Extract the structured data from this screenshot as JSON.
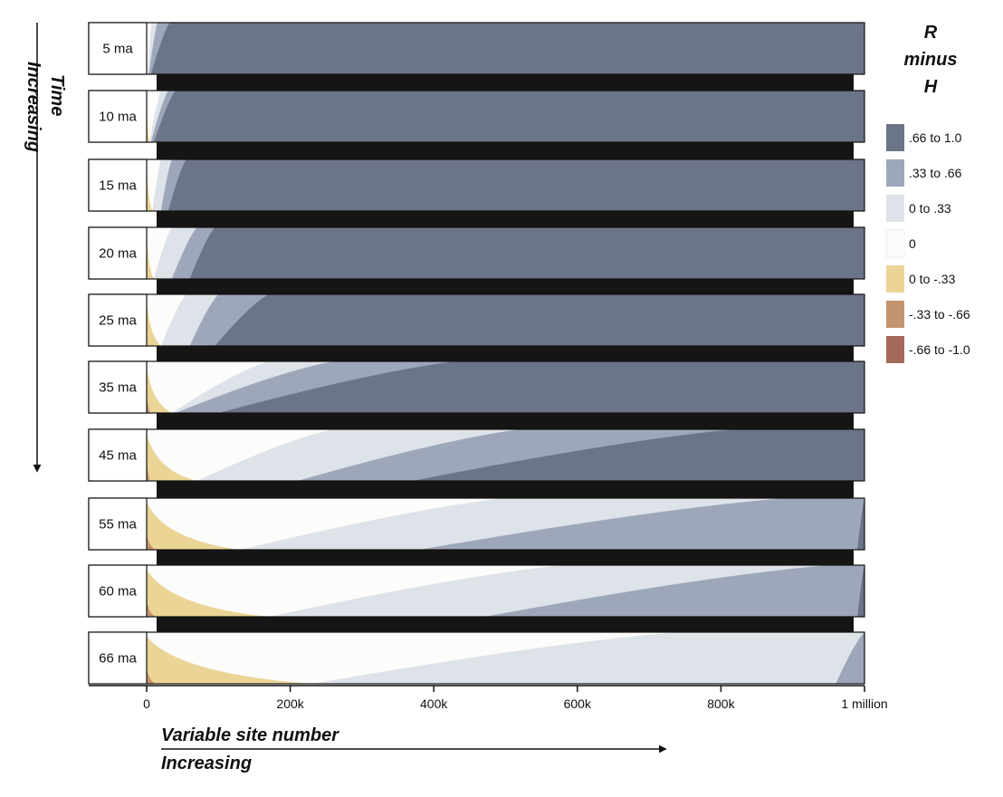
{
  "chart_data": {
    "type": "area",
    "x": {
      "range": [
        0,
        1000000
      ],
      "ticks": [
        0,
        200000,
        400000,
        600000,
        800000,
        1000000
      ],
      "tick_labels": [
        "0",
        "200k",
        "400k",
        "600k",
        "800k",
        "1 million"
      ]
    },
    "x_axis_title": [
      "Variable site number",
      "Increasing"
    ],
    "y_axis_title": [
      "Time",
      "Increasing"
    ],
    "legend": {
      "title": [
        "R",
        "minus",
        "H"
      ],
      "placement": "right",
      "entries": [
        {
          "label": ".66 to 1.0",
          "color": "#6c7488"
        },
        {
          "label": ".33 to .66",
          "color": "#9ea7ba"
        },
        {
          "label": "0 to .33",
          "color": "#dde3e8"
        },
        {
          "label": "0",
          "color": "#fcfcfa"
        },
        {
          "label": "0 to -.33",
          "color": "#ead597"
        },
        {
          "label": "-.33 to -.66",
          "color": "#c3946e"
        },
        {
          "label": "-.66 to -1.0",
          "color": "#a4695a"
        }
      ]
    },
    "panels": [
      {
        "label": "5 ma",
        "boundaries": {
          "b_dark": 0.006,
          "b_mid": 0.003,
          "b_zero": 0.0015,
          "b_neg1": 0.0,
          "b_neg2": 0.0
        },
        "top": {
          "b_dark": 0.032,
          "b_mid": 0.015,
          "b_zero": 0.007,
          "b_neg1": 0.0,
          "b_neg2": 0.0
        }
      },
      {
        "label": "10 ma",
        "boundaries": {
          "b_dark": 0.01,
          "b_mid": 0.006,
          "b_zero": 0.004,
          "b_neg1": 0.0,
          "b_neg2": 0.0
        },
        "top": {
          "b_dark": 0.04,
          "b_mid": 0.03,
          "b_zero": 0.02,
          "b_neg1": 0.0,
          "b_neg2": 0.0
        }
      },
      {
        "label": "15 ma",
        "boundaries": {
          "b_dark": 0.03,
          "b_mid": 0.02,
          "b_zero": 0.008,
          "b_neg1": 0.002,
          "b_neg2": 0.0
        },
        "top": {
          "b_dark": 0.055,
          "b_mid": 0.035,
          "b_zero": 0.02,
          "b_neg1": 0.0,
          "b_neg2": 0.0
        }
      },
      {
        "label": "20 ma",
        "boundaries": {
          "b_dark": 0.06,
          "b_mid": 0.035,
          "b_zero": 0.01,
          "b_neg1": 0.004,
          "b_neg2": 0.0
        },
        "top": {
          "b_dark": 0.095,
          "b_mid": 0.07,
          "b_zero": 0.035,
          "b_neg1": 0.0,
          "b_neg2": 0.0
        }
      },
      {
        "label": "25 ma",
        "boundaries": {
          "b_dark": 0.095,
          "b_mid": 0.06,
          "b_zero": 0.02,
          "b_neg1": 0.01,
          "b_neg2": 0.0
        },
        "top": {
          "b_dark": 0.17,
          "b_mid": 0.1,
          "b_zero": 0.055,
          "b_neg1": 0.0,
          "b_neg2": 0.0
        }
      },
      {
        "label": "35 ma",
        "boundaries": {
          "b_dark": 0.1,
          "b_mid": 0.04,
          "b_zero": 0.035,
          "b_neg1": 0.0,
          "b_neg2": 0.0
        },
        "top": {
          "b_dark": 0.43,
          "b_mid": 0.26,
          "b_zero": 0.17,
          "b_neg1": 0.0,
          "b_neg2": 0.0
        }
      },
      {
        "label": "45 ma",
        "boundaries": {
          "b_dark": 0.37,
          "b_mid": 0.21,
          "b_zero": 0.07,
          "b_neg1": 0.004,
          "b_neg2": 0.0
        },
        "top": {
          "b_dark": 0.82,
          "b_mid": 0.52,
          "b_zero": 0.26,
          "b_neg1": 0.0,
          "b_neg2": 0.0
        }
      },
      {
        "label": "55 ma",
        "boundaries": {
          "b_dark": 0.99,
          "b_mid": 0.38,
          "b_zero": 0.13,
          "b_neg1": 0.012,
          "b_neg2": 0.0
        },
        "top": {
          "b_dark": 1.0,
          "b_mid": 0.89,
          "b_zero": 0.5,
          "b_neg1": 0.0,
          "b_neg2": 0.0
        }
      },
      {
        "label": "60 ma",
        "boundaries": {
          "b_dark": 0.99,
          "b_mid": 0.47,
          "b_zero": 0.17,
          "b_neg1": 0.012,
          "b_neg2": 0.0
        },
        "top": {
          "b_dark": 1.0,
          "b_mid": 0.95,
          "b_zero": 0.58,
          "b_neg1": 0.0,
          "b_neg2": 0.0
        }
      },
      {
        "label": "66 ma",
        "boundaries": {
          "b_dark": 1.0,
          "b_mid": 0.96,
          "b_zero": 0.23,
          "b_neg1": 0.0,
          "b_neg2": 0.0
        },
        "top": {
          "b_dark": 1.0,
          "b_mid": 1.0,
          "b_zero": 0.74,
          "b_neg1": 0.0,
          "b_neg2": 0.0
        }
      }
    ]
  }
}
